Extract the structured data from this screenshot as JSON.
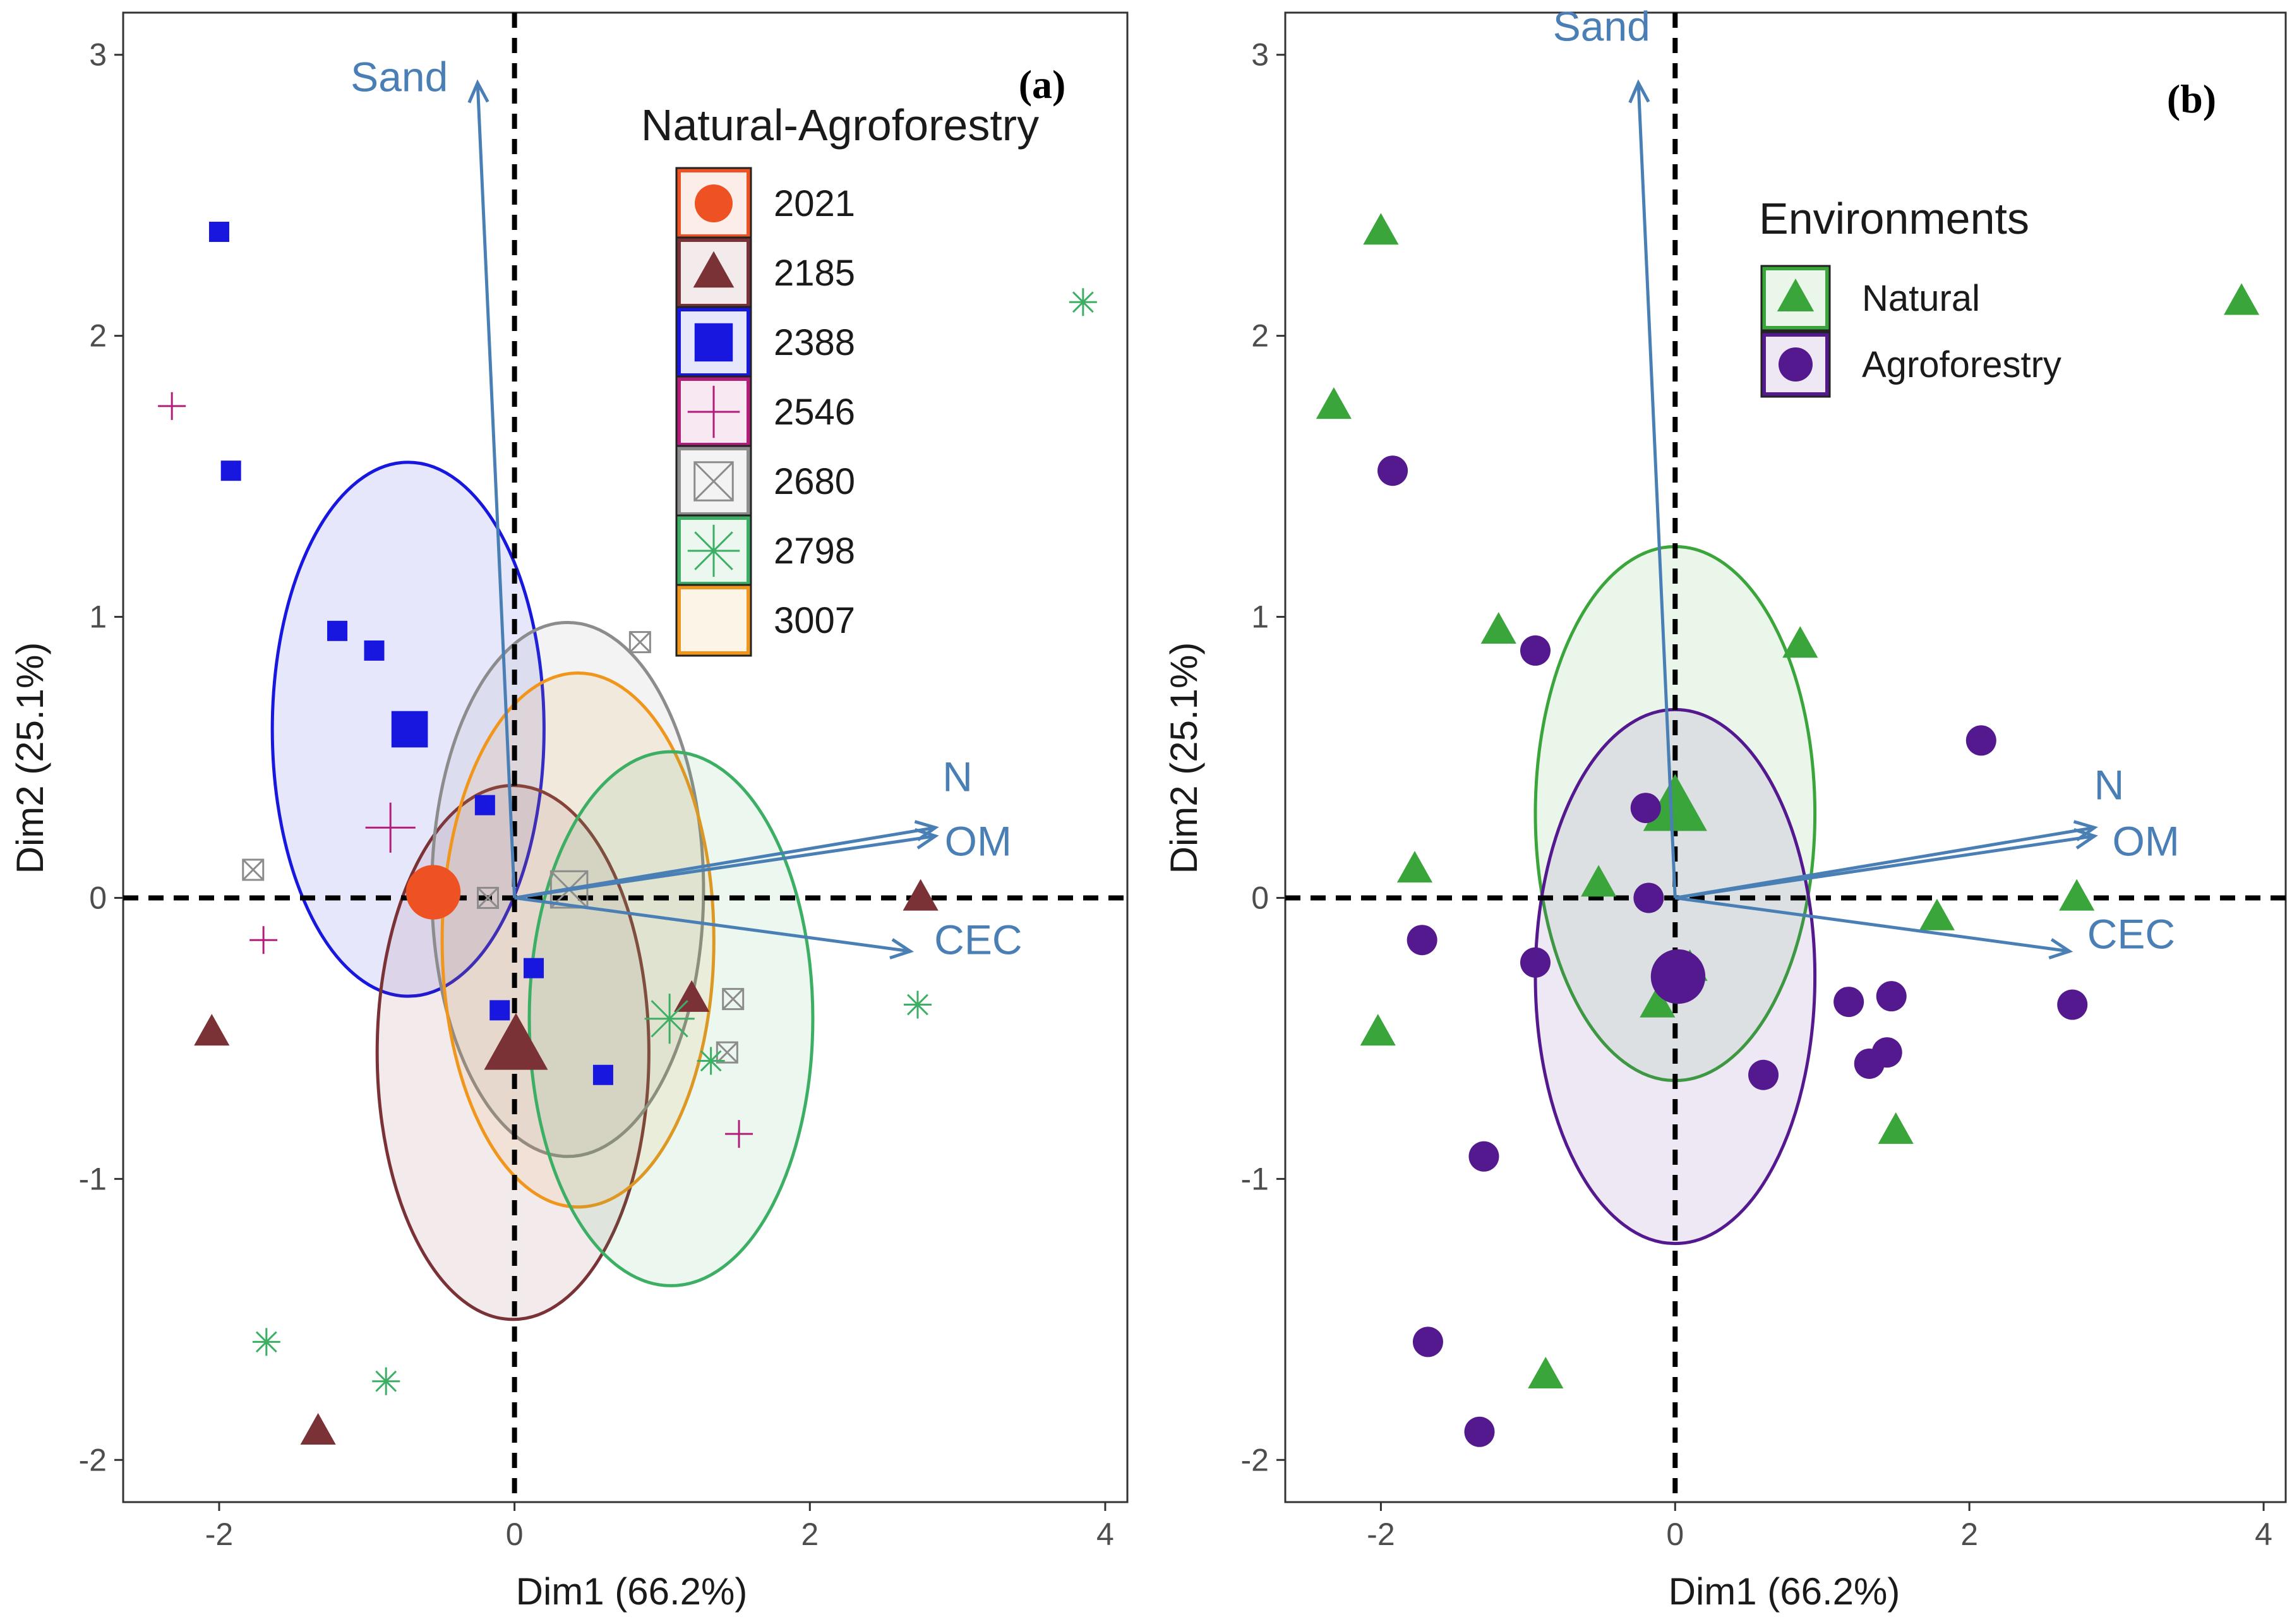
{
  "chart_data": [
    {
      "type": "scatter",
      "panel_label": "(a)",
      "xlabel": "Dim1 (66.2%)",
      "ylabel": "Dim2 (25.1%)",
      "xlim": [
        -2.65,
        4.15
      ],
      "ylim": [
        -2.15,
        3.15
      ],
      "xticks": [
        -2,
        0,
        2,
        4
      ],
      "yticks": [
        -2,
        -1,
        0,
        1,
        2,
        3
      ],
      "xtick_labels": [
        "-2",
        "0",
        "2",
        "4"
      ],
      "ytick_labels": [
        "-2",
        "-1",
        "0",
        "1",
        "2",
        "3"
      ],
      "reference_lines": {
        "x": 0,
        "y": 0
      },
      "legend": {
        "title": "Natural-Agroforestry",
        "placement": "top-right-inside",
        "entries": [
          {
            "label": "2021",
            "color": "#ee5122",
            "shape": "circle"
          },
          {
            "label": "2185",
            "color": "#7b3236",
            "shape": "triangle"
          },
          {
            "label": "2388",
            "color": "#1717e0",
            "shape": "square"
          },
          {
            "label": "2546",
            "color": "#b21d79",
            "shape": "plus"
          },
          {
            "label": "2680",
            "color": "#8c8c8c",
            "shape": "boxed-x"
          },
          {
            "label": "2798",
            "color": "#3daf64",
            "shape": "asterisk"
          },
          {
            "label": "3007",
            "color": "#f0961c",
            "shape": "none"
          }
        ]
      },
      "vectors": [
        {
          "label": "Sand",
          "x": -0.25,
          "y": 2.9,
          "label_x": -0.78,
          "label_y": 2.87
        },
        {
          "label": "N",
          "x": 2.85,
          "y": 0.25,
          "label_x": 3.0,
          "label_y": 0.38
        },
        {
          "label": "OM",
          "x": 2.85,
          "y": 0.22,
          "label_x": 3.14,
          "label_y": 0.15
        },
        {
          "label": "CEC",
          "x": 2.68,
          "y": -0.19,
          "label_x": 3.14,
          "label_y": -0.2
        }
      ],
      "ellipses": [
        {
          "group": "2388",
          "cx": -0.72,
          "cy": 0.6,
          "rx": 0.92,
          "ry": 0.95,
          "color": "#1717e0"
        },
        {
          "group": "2185",
          "cx": -0.01,
          "cy": -0.55,
          "rx": 0.92,
          "ry": 0.95,
          "color": "#7b3236"
        },
        {
          "group": "2680",
          "cx": 0.36,
          "cy": 0.03,
          "rx": 0.92,
          "ry": 0.95,
          "color": "#8c8c8c"
        },
        {
          "group": "3007",
          "cx": 0.43,
          "cy": -0.15,
          "rx": 0.92,
          "ry": 0.95,
          "color": "#f0961c"
        },
        {
          "group": "2798",
          "cx": 1.06,
          "cy": -0.43,
          "rx": 0.96,
          "ry": 0.95,
          "color": "#3daf64"
        }
      ],
      "series": [
        {
          "name": "2021",
          "color": "#ee5122",
          "shape": "circle",
          "points": [],
          "centroid": [
            -0.55,
            0.02
          ]
        },
        {
          "name": "2185",
          "color": "#7b3236",
          "shape": "triangle",
          "points": [
            [
              -2.05,
              -0.48
            ],
            [
              -1.33,
              -1.9
            ],
            [
              1.2,
              -0.36
            ],
            [
              2.75,
              0.0
            ]
          ],
          "centroid": [
            0.01,
            -0.53
          ]
        },
        {
          "name": "2388",
          "color": "#1717e0",
          "shape": "square",
          "points": [
            [
              -2.0,
              2.37
            ],
            [
              -1.92,
              1.52
            ],
            [
              -1.2,
              0.95
            ],
            [
              -0.95,
              0.88
            ],
            [
              -0.2,
              0.33
            ],
            [
              0.13,
              -0.25
            ],
            [
              -0.1,
              -0.4
            ],
            [
              0.6,
              -0.63
            ]
          ],
          "centroid": [
            -0.71,
            0.6
          ]
        },
        {
          "name": "2546",
          "color": "#b21d79",
          "shape": "plus",
          "points": [
            [
              -2.32,
              1.75
            ],
            [
              -1.7,
              -0.15
            ],
            [
              1.52,
              -0.84
            ]
          ],
          "centroid": [
            -0.84,
            0.25
          ]
        },
        {
          "name": "2680",
          "color": "#8c8c8c",
          "shape": "boxed-x",
          "points": [
            [
              -1.77,
              0.1
            ],
            [
              -0.18,
              0.0
            ],
            [
              0.85,
              0.91
            ],
            [
              1.48,
              -0.36
            ],
            [
              1.44,
              -0.55
            ]
          ],
          "centroid": [
            0.37,
            0.03
          ]
        },
        {
          "name": "2798",
          "color": "#3daf64",
          "shape": "asterisk",
          "points": [
            [
              3.85,
              2.12
            ],
            [
              -1.68,
              -1.58
            ],
            [
              -0.87,
              -1.72
            ],
            [
              2.73,
              -0.38
            ],
            [
              1.33,
              -0.58
            ]
          ],
          "centroid": [
            1.05,
            -0.43
          ]
        }
      ]
    },
    {
      "type": "scatter",
      "panel_label": "(b)",
      "xlabel": "Dim1 (66.2%)",
      "ylabel": "Dim2 (25.1%)",
      "xlim": [
        -2.65,
        4.15
      ],
      "ylim": [
        -2.15,
        3.15
      ],
      "xticks": [
        -2,
        0,
        2,
        4
      ],
      "yticks": [
        -2,
        -1,
        0,
        1,
        2,
        3
      ],
      "xtick_labels": [
        "-2",
        "0",
        "2",
        "4"
      ],
      "ytick_labels": [
        "-2",
        "-1",
        "0",
        "1",
        "2",
        "3"
      ],
      "reference_lines": {
        "x": 0,
        "y": 0
      },
      "legend": {
        "title": "Environments",
        "placement": "top-right-inside",
        "entries": [
          {
            "label": "Natural",
            "color": "#3aa53a",
            "shape": "triangle"
          },
          {
            "label": "Agroforestry",
            "color": "#54198f",
            "shape": "circle"
          }
        ]
      },
      "vectors": [
        {
          "label": "Sand",
          "x": -0.25,
          "y": 2.9,
          "label_x": -0.5,
          "label_y": 3.05
        },
        {
          "label": "N",
          "x": 2.85,
          "y": 0.25,
          "label_x": 2.95,
          "label_y": 0.35
        },
        {
          "label": "OM",
          "x": 2.85,
          "y": 0.22,
          "label_x": 3.2,
          "label_y": 0.15
        },
        {
          "label": "CEC",
          "x": 2.68,
          "y": -0.19,
          "label_x": 3.1,
          "label_y": -0.18
        }
      ],
      "ellipses": [
        {
          "group": "Natural",
          "cx": 0.0,
          "cy": 0.3,
          "rx": 0.95,
          "ry": 0.95,
          "color": "#3aa53a"
        },
        {
          "group": "Agroforestry",
          "cx": 0.0,
          "cy": -0.28,
          "rx": 0.95,
          "ry": 0.95,
          "color": "#54198f"
        }
      ],
      "series": [
        {
          "name": "Natural",
          "color": "#3aa53a",
          "shape": "triangle",
          "points": [
            [
              -2.0,
              2.37
            ],
            [
              -2.32,
              1.75
            ],
            [
              -1.2,
              0.95
            ],
            [
              0.85,
              0.9
            ],
            [
              -1.77,
              0.1
            ],
            [
              -0.52,
              0.05
            ],
            [
              -0.12,
              -0.38
            ],
            [
              0.1,
              -0.25
            ],
            [
              -2.02,
              -0.48
            ],
            [
              1.5,
              -0.83
            ],
            [
              1.78,
              -0.07
            ],
            [
              2.73,
              0.0
            ],
            [
              3.85,
              2.12
            ],
            [
              -0.88,
              -1.7
            ]
          ],
          "centroid": [
            0.0,
            0.32
          ]
        },
        {
          "name": "Agroforestry",
          "color": "#54198f",
          "shape": "circle",
          "points": [
            [
              -1.92,
              1.52
            ],
            [
              -0.95,
              0.88
            ],
            [
              -0.2,
              0.32
            ],
            [
              -0.18,
              0.0
            ],
            [
              -0.95,
              -0.23
            ],
            [
              -1.72,
              -0.15
            ],
            [
              2.08,
              0.56
            ],
            [
              1.18,
              -0.37
            ],
            [
              1.47,
              -0.35
            ],
            [
              1.44,
              -0.55
            ],
            [
              1.32,
              -0.59
            ],
            [
              0.6,
              -0.63
            ],
            [
              2.7,
              -0.38
            ],
            [
              -1.3,
              -0.92
            ],
            [
              -1.68,
              -1.58
            ],
            [
              -1.33,
              -1.9
            ]
          ],
          "centroid": [
            0.02,
            -0.28
          ]
        }
      ]
    }
  ]
}
